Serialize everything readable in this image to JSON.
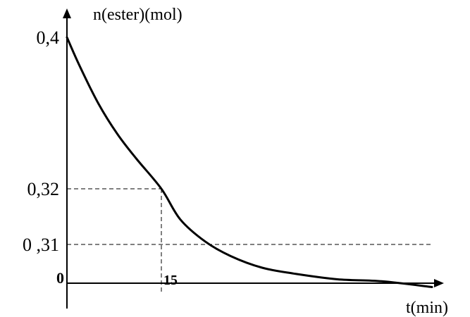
{
  "chart_data": {
    "type": "line",
    "ylabel": "n(ester)(mol)",
    "xlabel": "t(min)",
    "origin_label": "0",
    "x": [
      0,
      2,
      5,
      8,
      11,
      15,
      18,
      22,
      26,
      31,
      36,
      43,
      50,
      58
    ],
    "y": [
      0.4,
      0.385,
      0.365,
      0.349,
      0.336,
      0.32,
      0.3145,
      0.3105,
      0.307,
      0.304,
      0.3025,
      0.301,
      0.3005,
      0.299
    ],
    "y_ticks": [
      {
        "value": 0.4,
        "label": "0,4"
      },
      {
        "value": 0.32,
        "label": "0,32"
      },
      {
        "value": 0.31,
        "label": "0 ,31"
      }
    ],
    "x_ticks": [
      {
        "value": 15,
        "label": "15"
      }
    ],
    "reference_lines": [
      {
        "kind": "dashed",
        "from_x": 0,
        "to_x": 15,
        "y": 0.32
      },
      {
        "kind": "dashed",
        "x": 15,
        "from_y": 0.3,
        "to_y": 0.32
      },
      {
        "kind": "dashed",
        "from_x": 0,
        "to_x": 58,
        "y": 0.31
      }
    ],
    "grid": false
  },
  "colors": {
    "line": "#000000",
    "background": "#ffffff"
  }
}
